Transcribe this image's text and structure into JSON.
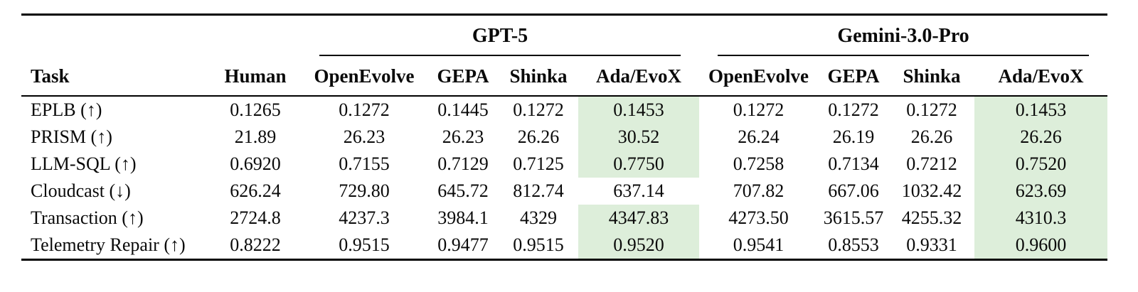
{
  "table": {
    "group_headers": [
      "GPT-5",
      "Gemini-3.0-Pro"
    ],
    "columns": [
      "Task",
      "Human",
      "OpenEvolve",
      "GEPA",
      "Shinka",
      "Ada/EvoX",
      "OpenEvolve",
      "GEPA",
      "Shinka",
      "Ada/EvoX"
    ],
    "highlight_color": "#ddeeda",
    "rows": [
      {
        "task": "EPLB (↑)",
        "values": [
          "0.1265",
          "0.1272",
          "0.1445",
          "0.1272",
          "0.1453",
          "0.1272",
          "0.1272",
          "0.1272",
          "0.1453"
        ],
        "highlight": [
          4,
          8
        ]
      },
      {
        "task": "PRISM (↑)",
        "values": [
          "21.89",
          "26.23",
          "26.23",
          "26.26",
          "30.52",
          "26.24",
          "26.19",
          "26.26",
          "26.26"
        ],
        "highlight": [
          4,
          8
        ]
      },
      {
        "task": "LLM-SQL (↑)",
        "values": [
          "0.6920",
          "0.7155",
          "0.7129",
          "0.7125",
          "0.7750",
          "0.7258",
          "0.7134",
          "0.7212",
          "0.7520"
        ],
        "highlight": [
          4,
          8
        ]
      },
      {
        "task": "Cloudcast (↓)",
        "values": [
          "626.24",
          "729.80",
          "645.72",
          "812.74",
          "637.14",
          "707.82",
          "667.06",
          "1032.42",
          "623.69"
        ],
        "highlight": [
          8
        ]
      },
      {
        "task": "Transaction (↑)",
        "values": [
          "2724.8",
          "4237.3",
          "3984.1",
          "4329",
          "4347.83",
          "4273.50",
          "3615.57",
          "4255.32",
          "4310.3"
        ],
        "highlight": [
          4,
          8
        ]
      },
      {
        "task": "Telemetry Repair (↑)",
        "values": [
          "0.8222",
          "0.9515",
          "0.9477",
          "0.9515",
          "0.9520",
          "0.9541",
          "0.8553",
          "0.9331",
          "0.9600"
        ],
        "highlight": [
          4,
          8
        ]
      }
    ]
  }
}
